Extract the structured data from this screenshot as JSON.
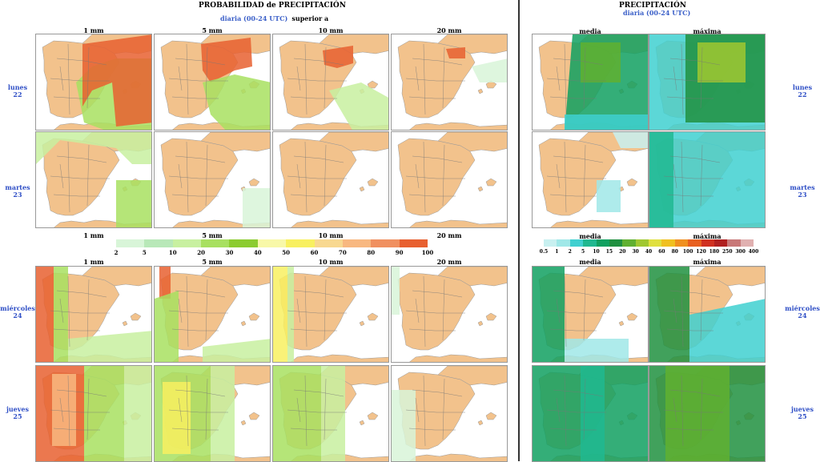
{
  "left": {
    "title": "PROBABILIDAD de PRECIPITACIÓN",
    "subtitle_blue": "diaria (00-24 UTC)",
    "subtitle_black": "superior a",
    "thresholds": [
      "1 mm",
      "5 mm",
      "10 mm",
      "20 mm"
    ],
    "legend_labels": [
      "2",
      "5",
      "10",
      "20",
      "30",
      "40",
      "50",
      "60",
      "70",
      "80",
      "90",
      "100"
    ],
    "legend_colors": [
      "#d8f5d8",
      "#b8e8b8",
      "#c8f0a0",
      "#a8e060",
      "#8ccc30",
      "#f8f8a8",
      "#f8f060",
      "#f8d890",
      "#f8b880",
      "#f09060",
      "#e86030"
    ]
  },
  "right": {
    "title": "PRECIPITACIÓN",
    "subtitle_blue": "diaria (00-24 UTC)",
    "columns": [
      "media",
      "máxima"
    ],
    "legend_labels": [
      "0.5",
      "1",
      "2",
      "5",
      "10",
      "15",
      "20",
      "30",
      "40",
      "60",
      "80",
      "100",
      "120",
      "180",
      "250",
      "300",
      "400"
    ],
    "legend_colors": [
      "#c8f0f0",
      "#a0e8e8",
      "#40d0d0",
      "#20b890",
      "#10a060",
      "#209040",
      "#60b030",
      "#a0c830",
      "#e0e040",
      "#f0c020",
      "#f09020",
      "#e86020",
      "#d03020",
      "#b02020",
      "#c87878",
      "#e0b0b0"
    ]
  },
  "days": [
    {
      "name": "lunes",
      "num": "22"
    },
    {
      "name": "martes",
      "num": "23"
    },
    {
      "name": "miércoles",
      "num": "24"
    },
    {
      "name": "jueves",
      "num": "25"
    }
  ],
  "palette": {
    "land": "#f2c28c",
    "sea": "#ffffff",
    "border": "#888888",
    "day_label": "#2f4fc6",
    "divider": "#333333"
  }
}
